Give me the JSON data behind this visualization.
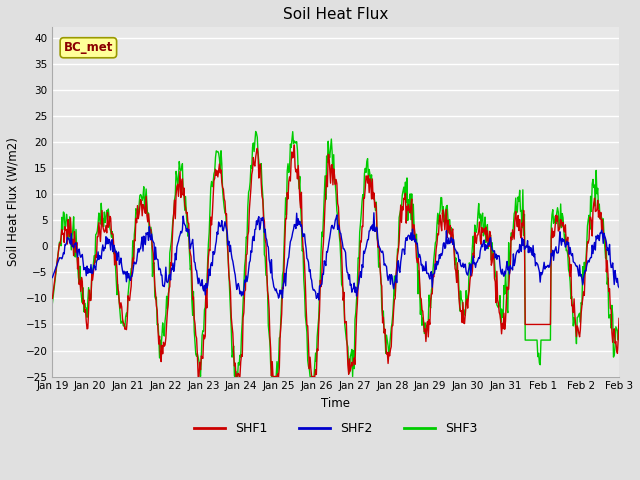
{
  "title": "Soil Heat Flux",
  "ylabel": "Soil Heat Flux (W/m2)",
  "xlabel": "Time",
  "ylim": [
    -25,
    42
  ],
  "yticks": [
    -25,
    -20,
    -15,
    -10,
    -5,
    0,
    5,
    10,
    15,
    20,
    25,
    30,
    35,
    40
  ],
  "bg_color": "#e0e0e0",
  "plot_bg_color": "#e8e8e8",
  "shf1_color": "#cc0000",
  "shf2_color": "#0000cc",
  "shf3_color": "#00cc00",
  "legend_label1": "SHF1",
  "legend_label2": "SHF2",
  "legend_label3": "SHF3",
  "annotation_text": "BC_met",
  "annotation_color": "#8b0000",
  "annotation_bg": "#ffff99",
  "tick_labels": [
    "Jan 19",
    "Jan 20",
    "Jan 21",
    "Jan 22",
    "Jan 23",
    "Jan 24",
    "Jan 25",
    "Jan 26",
    "Jan 27",
    "Jan 28",
    "Jan 29",
    "Jan 30",
    "Jan 31",
    "Feb 1",
    "Feb 2",
    "Feb 3"
  ]
}
